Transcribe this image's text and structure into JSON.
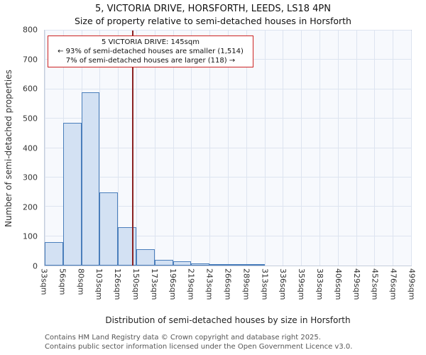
{
  "title": "5, VICTORIA DRIVE, HORSFORTH, LEEDS, LS18 4PN",
  "subtitle": "Size of property relative to semi-detached houses in Horsforth",
  "chart_data": {
    "type": "bar",
    "title": "Size of property relative to semi-detached houses in Horsforth",
    "xlabel": "Distribution of semi-detached houses by size in Horsforth",
    "ylabel": "Number of semi-detached properties",
    "categories": [
      "33sqm",
      "56sqm",
      "80sqm",
      "103sqm",
      "126sqm",
      "150sqm",
      "173sqm",
      "196sqm",
      "219sqm",
      "243sqm",
      "266sqm",
      "289sqm",
      "313sqm",
      "336sqm",
      "359sqm",
      "383sqm",
      "406sqm",
      "429sqm",
      "452sqm",
      "476sqm",
      "499sqm"
    ],
    "bin_edges_sqm": [
      33,
      56,
      80,
      103,
      126,
      150,
      173,
      196,
      219,
      243,
      266,
      289,
      313,
      336,
      359,
      383,
      406,
      429,
      452,
      476,
      499
    ],
    "values": [
      80,
      485,
      590,
      250,
      130,
      55,
      20,
      15,
      8,
      5,
      3,
      2,
      0,
      0,
      0,
      0,
      0,
      0,
      0,
      0
    ],
    "y_ticks": [
      0,
      100,
      200,
      300,
      400,
      500,
      600,
      700,
      800
    ],
    "ylim": [
      0,
      800
    ],
    "grid": true,
    "legend": "none",
    "bar_fill": "#d3e1f3",
    "bar_border": "#4a7ebb",
    "marker": {
      "value_sqm": 145,
      "color": "#8b2222"
    }
  },
  "annotation": {
    "line1": "5 VICTORIA DRIVE: 145sqm",
    "line2": "← 93% of semi-detached houses are smaller (1,514)",
    "line3": "7% of semi-detached houses are larger (118) →"
  },
  "footer": {
    "line1": "Contains HM Land Registry data © Crown copyright and database right 2025.",
    "line2": "Contains public sector information licensed under the Open Government Licence v3.0."
  }
}
